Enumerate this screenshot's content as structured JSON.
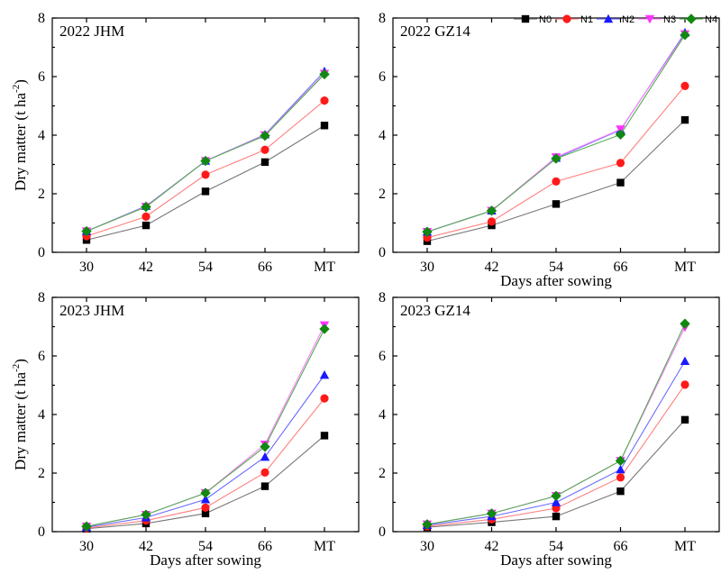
{
  "legend": {
    "entries": [
      {
        "label": "N0",
        "marker": "square",
        "color": "#000000",
        "line": "#777777"
      },
      {
        "label": "N1",
        "marker": "circle",
        "color": "#ff1a1a",
        "line": "#ff8080"
      },
      {
        "label": "N2",
        "marker": "triangle-up",
        "color": "#1a1aff",
        "line": "#6b6bff"
      },
      {
        "label": "N3",
        "marker": "triangle-down",
        "color": "#ff33ff",
        "line": "#ff80ff"
      },
      {
        "label": "N4",
        "marker": "diamond",
        "color": "#118811",
        "line": "#55aa55"
      }
    ],
    "placement": "top-right"
  },
  "chart_data": [
    {
      "type": "line",
      "title": "2022 JHM",
      "xlabel": "",
      "ylabel": "Dry matter (t ha-2)",
      "categories": [
        "30",
        "42",
        "54",
        "66",
        "MT"
      ],
      "ylim": [
        0,
        8
      ],
      "yticks": [
        0,
        2,
        4,
        6,
        8
      ],
      "grid": false,
      "series": [
        {
          "name": "N0",
          "values": [
            0.42,
            0.92,
            2.08,
            3.08,
            4.33
          ]
        },
        {
          "name": "N1",
          "values": [
            0.55,
            1.22,
            2.65,
            3.5,
            5.18
          ]
        },
        {
          "name": "N2",
          "values": [
            0.72,
            1.58,
            3.12,
            4.02,
            6.18
          ]
        },
        {
          "name": "N3",
          "values": [
            0.72,
            1.56,
            3.12,
            4.0,
            6.1
          ]
        },
        {
          "name": "N4",
          "values": [
            0.72,
            1.55,
            3.12,
            3.98,
            6.08
          ]
        }
      ]
    },
    {
      "type": "line",
      "title": "2022 GZ14",
      "xlabel": "Days after sowing",
      "ylabel": "",
      "categories": [
        "30",
        "42",
        "54",
        "66",
        "MT"
      ],
      "ylim": [
        0,
        8
      ],
      "yticks": [
        0,
        2,
        4,
        6,
        8
      ],
      "grid": false,
      "series": [
        {
          "name": "N0",
          "values": [
            0.38,
            0.92,
            1.65,
            2.38,
            4.52
          ]
        },
        {
          "name": "N1",
          "values": [
            0.5,
            1.05,
            2.42,
            3.05,
            5.68
          ]
        },
        {
          "name": "N2",
          "values": [
            0.7,
            1.42,
            3.22,
            4.18,
            7.5
          ]
        },
        {
          "name": "N3",
          "values": [
            0.7,
            1.42,
            3.25,
            4.2,
            7.45
          ]
        },
        {
          "name": "N4",
          "values": [
            0.7,
            1.42,
            3.2,
            4.02,
            7.42
          ]
        }
      ]
    },
    {
      "type": "line",
      "title": "2023 JHM",
      "xlabel": "Days after sowing",
      "ylabel": "Dry matter (t ha-2)",
      "categories": [
        "30",
        "42",
        "54",
        "66",
        "MT"
      ],
      "ylim": [
        0,
        8
      ],
      "yticks": [
        0,
        2,
        4,
        6,
        8
      ],
      "grid": false,
      "series": [
        {
          "name": "N0",
          "values": [
            0.1,
            0.28,
            0.62,
            1.55,
            3.28
          ]
        },
        {
          "name": "N1",
          "values": [
            0.12,
            0.38,
            0.82,
            2.02,
            4.55
          ]
        },
        {
          "name": "N2",
          "values": [
            0.15,
            0.48,
            1.1,
            2.55,
            5.35
          ]
        },
        {
          "name": "N3",
          "values": [
            0.18,
            0.58,
            1.32,
            2.98,
            7.05
          ]
        },
        {
          "name": "N4",
          "values": [
            0.18,
            0.58,
            1.32,
            2.9,
            6.92
          ]
        }
      ]
    },
    {
      "type": "line",
      "title": "2023 GZ14",
      "xlabel": "Days after sowing",
      "ylabel": "",
      "categories": [
        "30",
        "42",
        "54",
        "66",
        "MT"
      ],
      "ylim": [
        0,
        8
      ],
      "yticks": [
        0,
        2,
        4,
        6,
        8
      ],
      "grid": false,
      "series": [
        {
          "name": "N0",
          "values": [
            0.15,
            0.32,
            0.52,
            1.38,
            3.82
          ]
        },
        {
          "name": "N1",
          "values": [
            0.18,
            0.42,
            0.8,
            1.85,
            5.02
          ]
        },
        {
          "name": "N2",
          "values": [
            0.22,
            0.52,
            1.0,
            2.12,
            5.82
          ]
        },
        {
          "name": "N3",
          "values": [
            0.25,
            0.62,
            1.22,
            2.42,
            6.98
          ]
        },
        {
          "name": "N4",
          "values": [
            0.25,
            0.62,
            1.22,
            2.42,
            7.1
          ]
        }
      ]
    }
  ]
}
